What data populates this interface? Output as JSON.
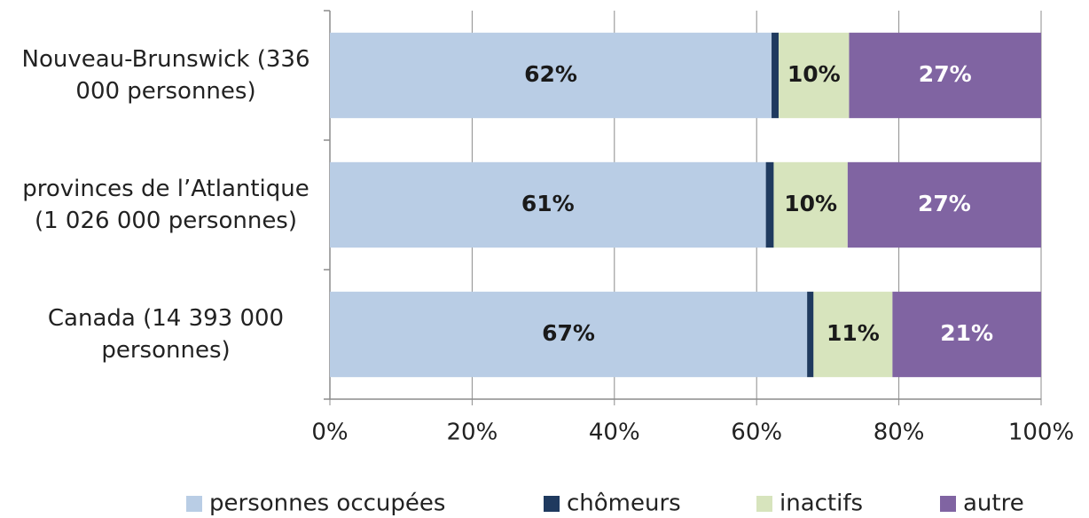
{
  "chart_data": {
    "type": "stacked_barh",
    "categories": [
      "Nouveau-Brunswick (336 000 personnes)",
      "provinces de l’Atlantique (1 026 000 personnes)",
      "Canada (14 393 000 personnes)"
    ],
    "series": [
      {
        "name": "personnes occupées",
        "color": "#b9cde5",
        "values": [
          62.1,
          61.3,
          67.1
        ],
        "value_labels": [
          "62%",
          "61%",
          "67%"
        ],
        "label_color": "#1a1a1a"
      },
      {
        "name": "chômeurs",
        "color": "#1f3a5f",
        "values": [
          1.0,
          1.1,
          0.9
        ]
      },
      {
        "name": "inactifs",
        "color": "#d7e4bd",
        "values": [
          9.9,
          10.4,
          11.1
        ],
        "value_labels": [
          "10%",
          "10%",
          "11%"
        ],
        "label_color": "#1a1a1a"
      },
      {
        "name": "autre",
        "color": "#8064a2",
        "values": [
          27.0,
          27.2,
          20.9
        ],
        "value_labels": [
          "27%",
          "27%",
          "21%"
        ],
        "label_color": "#ffffff"
      }
    ],
    "xlim": [
      0,
      100
    ],
    "xticks": [
      {
        "value": 0,
        "label": "0%"
      },
      {
        "value": 20,
        "label": "20%"
      },
      {
        "value": 40,
        "label": "40%"
      },
      {
        "value": 60,
        "label": "60%"
      },
      {
        "value": 80,
        "label": "80%"
      },
      {
        "value": 100,
        "label": "100%"
      }
    ],
    "grid": true,
    "legend": "bottom"
  }
}
